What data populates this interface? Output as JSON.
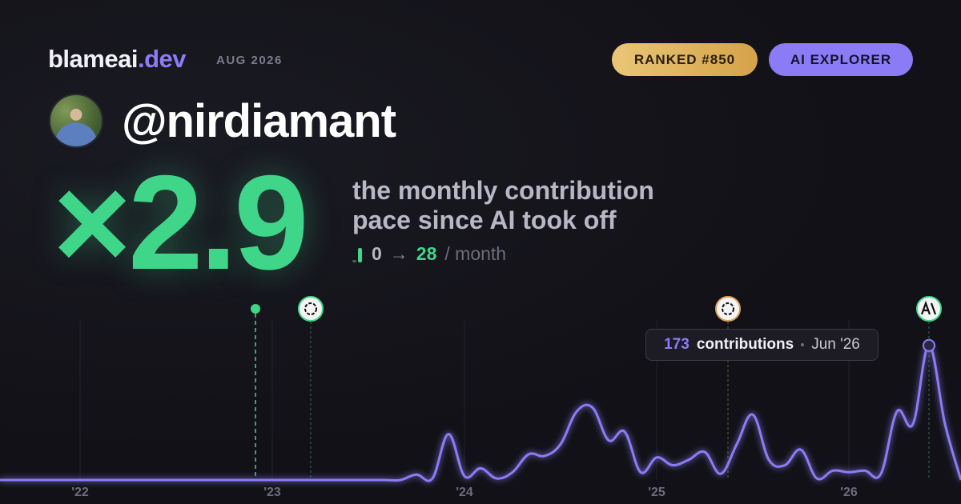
{
  "header": {
    "brand": "blameai",
    "tld": ".dev",
    "date": "AUG 2026",
    "badges": [
      "RANKED #850",
      "AI EXPLORER"
    ]
  },
  "profile": {
    "handle": "@nirdiamant"
  },
  "headline": {
    "multiplier": "×2.9",
    "description": [
      "the monthly contribution",
      "pace since AI took off"
    ],
    "from": "0",
    "arrow": "→",
    "to": "28",
    "unit": "/ month"
  },
  "chart_data": {
    "type": "line",
    "categories": [
      null,
      null,
      null,
      null,
      null,
      "'22",
      null,
      null,
      null,
      null,
      null,
      null,
      null,
      null,
      null,
      null,
      null,
      "'23",
      null,
      null,
      null,
      null,
      null,
      null,
      null,
      null,
      null,
      null,
      null,
      "'24",
      null,
      null,
      null,
      null,
      null,
      null,
      null,
      null,
      null,
      null,
      null,
      "'25",
      null,
      null,
      null,
      null,
      null,
      null,
      null,
      null,
      null,
      null,
      null,
      "'26",
      null,
      null,
      null,
      null,
      null,
      null,
      null
    ],
    "series": [
      {
        "name": "contributions",
        "color": "#8b7cf6",
        "values": [
          0,
          0,
          0,
          0,
          0,
          0,
          0,
          0,
          0,
          0,
          0,
          0,
          0,
          0,
          0,
          0,
          0,
          0,
          0,
          0,
          0,
          0,
          0,
          0,
          0,
          0,
          7,
          2,
          59,
          5,
          15,
          2,
          10,
          33,
          31,
          46,
          88,
          93,
          51,
          62,
          10,
          29,
          19,
          26,
          36,
          8,
          46,
          84,
          26,
          19,
          39,
          2,
          12,
          10,
          12,
          8,
          88,
          72,
          173,
          72,
          0
        ]
      }
    ],
    "ylim": [
      0,
      180
    ],
    "tooltip": {
      "value": 173,
      "label": "contributions",
      "date": "Jun '26"
    }
  }
}
